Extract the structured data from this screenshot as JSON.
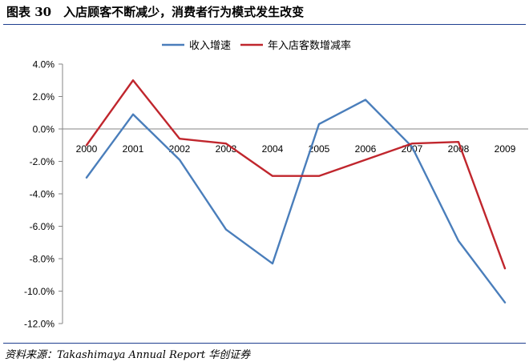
{
  "figure": {
    "title": "图表 30　入店顾客不断减少，消费者行为模式发生改变",
    "source": "资料来源：Takashimaya Annual Report  华创证券"
  },
  "chart_data": {
    "type": "line",
    "title": "",
    "xlabel": "",
    "ylabel": "",
    "x": [
      "2000",
      "2001",
      "2002",
      "2003",
      "2004",
      "2005",
      "2006",
      "2007",
      "2008",
      "2009"
    ],
    "ylim": [
      -12,
      4
    ],
    "yticks": [
      "4.0%",
      "2.0%",
      "0.0%",
      "-2.0%",
      "-4.0%",
      "-6.0%",
      "-8.0%",
      "-10.0%",
      "-12.0%"
    ],
    "legend_position": "top",
    "grid": false,
    "series": [
      {
        "name": "收入增速",
        "color": "#4a7ebb",
        "values": [
          -3.0,
          0.9,
          -1.9,
          -6.2,
          -8.3,
          0.3,
          1.8,
          -1.1,
          -6.9,
          -10.7
        ]
      },
      {
        "name": "年入店客数增减率",
        "color": "#c0262d",
        "values": [
          -1.0,
          3.0,
          -0.6,
          -0.9,
          -2.9,
          -2.9,
          -1.9,
          -0.9,
          -0.8,
          -8.6
        ]
      }
    ]
  }
}
